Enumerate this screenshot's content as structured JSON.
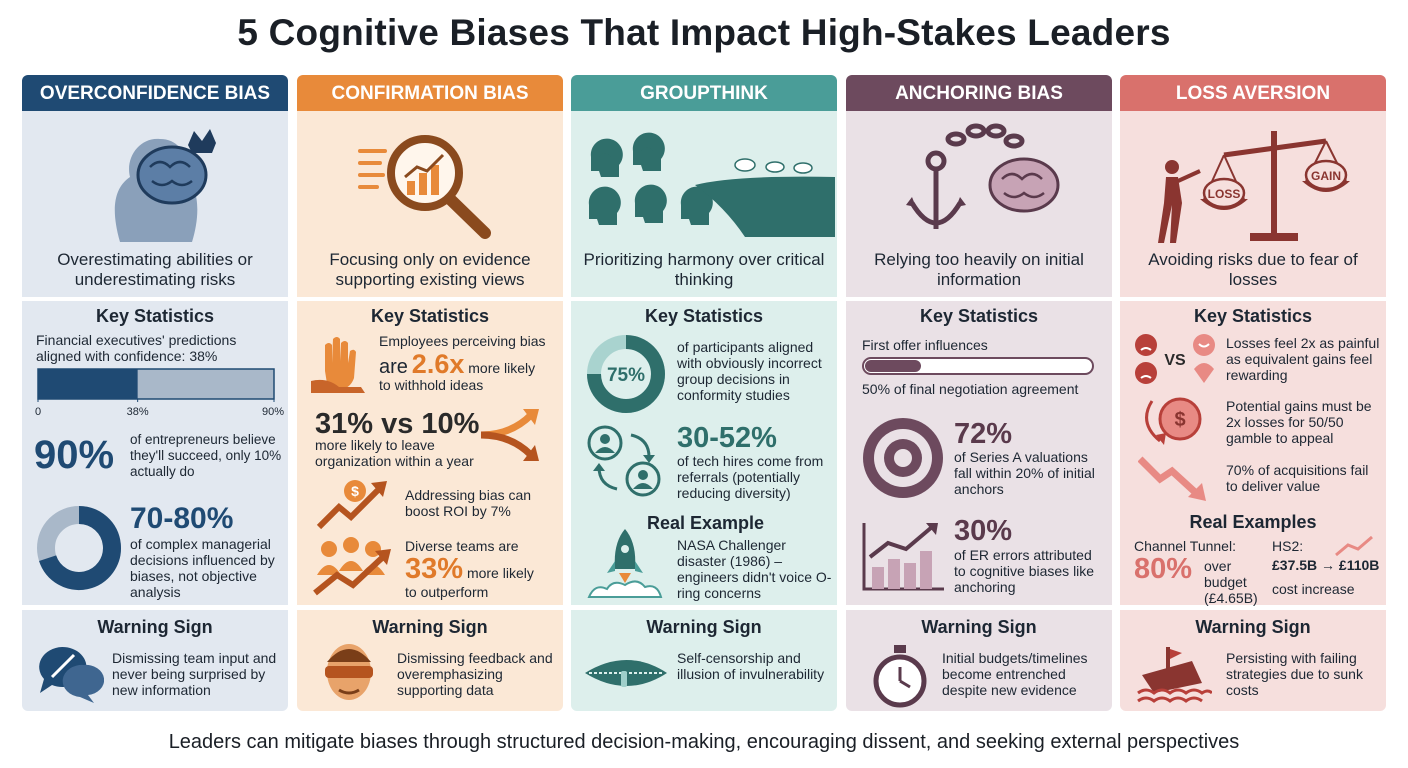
{
  "title": "5 Cognitive Biases That Impact High-Stakes Leaders",
  "columns": [
    {
      "header": "OVERCONFIDENCE BIAS",
      "description": "Overestimating abilities or underestimating risks",
      "stats_heading": "Key Statistics",
      "stats": [
        {
          "text": "Financial executives' predictions aligned with confidence: 38%",
          "bar": {
            "value": 38,
            "xlim": [
              0,
              90
            ],
            "xticks": [
              0,
              {
                "value": 38,
                "label": "38%"
              },
              {
                "value": 90,
                "label": "90%"
              }
            ]
          }
        },
        {
          "big": "90%",
          "text": "of entrepreneurs believe they'll succeed, only 10% actually do"
        },
        {
          "big": "70-80%",
          "text": "of complex managerial decisions influenced by biases, not objective analysis"
        }
      ],
      "warning_heading": "Warning Sign",
      "warning": "Dismissing team input and never being surprised by new information"
    },
    {
      "header": "CONFIRMATION BIAS",
      "description": "Focusing only on evidence supporting existing views",
      "stats_heading": "Key Statistics",
      "stats": [
        {
          "pre": "Employees perceiving bias",
          "mid": "are",
          "big": "2.6x",
          "post": "more likely",
          "tail": "to withhold ideas"
        },
        {
          "big": "31% vs 10%",
          "text": "more likely to leave organization within a year"
        },
        {
          "text": "Addressing bias can boost ROI by 7%"
        },
        {
          "pre": "Diverse teams are",
          "big": "33%",
          "post": "more likely",
          "tail": "to outperform"
        }
      ],
      "warning_heading": "Warning Sign",
      "warning": "Dismissing feedback and overemphasizing supporting data"
    },
    {
      "header": "GROUPTHINK",
      "description": "Prioritizing harmony over critical thinking",
      "stats_heading": "Key Statistics",
      "stats": [
        {
          "donut": {
            "value": 75,
            "label": "75%"
          },
          "text": "of participants aligned with obviously incorrect group decisions in conformity studies"
        },
        {
          "big": "30-52%",
          "text": "of tech hires come from referrals (potentially reducing diversity)"
        }
      ],
      "example_heading": "Real Example",
      "example": "NASA Challenger disaster (1986) – engineers didn't voice O-ring concerns",
      "warning_heading": "Warning Sign",
      "warning": "Self-censorship and illusion of invulnerability"
    },
    {
      "header": "ANCHORING BIAS",
      "description": "Relying too heavily on initial information",
      "stats_heading": "Key Statistics",
      "stats": [
        {
          "pre": "First offer influences",
          "text": "50% of final negotiation agreement"
        },
        {
          "big": "72%",
          "text": "of Series A valuations fall within 20% of initial anchors"
        },
        {
          "big": "30%",
          "text": "of ER errors attributed to cognitive biases like anchoring"
        }
      ],
      "warning_heading": "Warning Sign",
      "warning": "Initial budgets/timelines become entrenched despite new evidence"
    },
    {
      "header": "LOSS AVERSION",
      "description": "Avoiding risks due to fear of losses",
      "icon_labels": [
        "LOSS",
        "GAIN"
      ],
      "stats_heading": "Key Statistics",
      "stats": [
        {
          "vs": "VS",
          "text": "Losses feel 2x as painful as equivalent gains feel rewarding"
        },
        {
          "text": "Potential gains must be 2x losses for 50/50 gamble to appeal"
        },
        {
          "text": "70% of acquisitions fail to deliver value"
        }
      ],
      "example_heading": "Real Examples",
      "examples": [
        {
          "label": "Channel Tunnel:",
          "big": "80%",
          "text": "over budget (£4.65B)"
        },
        {
          "label": "HS2:",
          "big": "£37.5B → £110B",
          "text": "cost increase"
        }
      ],
      "warning_heading": "Warning Sign",
      "warning": "Persisting with failing strategies due to sunk costs"
    }
  ],
  "footer": "Leaders can mitigate biases through structured decision-making, encouraging dissent, and seeking external perspectives"
}
